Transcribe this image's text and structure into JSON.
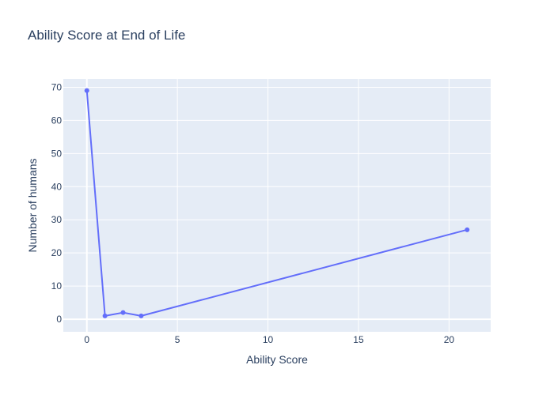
{
  "chart_data": {
    "type": "line",
    "title": "Ability Score at End of Life",
    "xlabel": "Ability Score",
    "ylabel": "Number of humans",
    "x": [
      0,
      1,
      2,
      3,
      21
    ],
    "y": [
      69,
      1,
      2,
      1,
      27
    ],
    "xlim": [
      -1.3,
      22.3
    ],
    "ylim": [
      -3.8,
      72.5
    ],
    "xticks": [
      0,
      5,
      10,
      15,
      20
    ],
    "yticks": [
      0,
      10,
      20,
      30,
      40,
      50,
      60,
      70
    ],
    "mode": "lines+markers",
    "grid": true,
    "colors": {
      "series": "#636efa",
      "plot_bg": "#e5ecf6",
      "grid": "#ffffff",
      "text": "#2a3f5f"
    }
  }
}
